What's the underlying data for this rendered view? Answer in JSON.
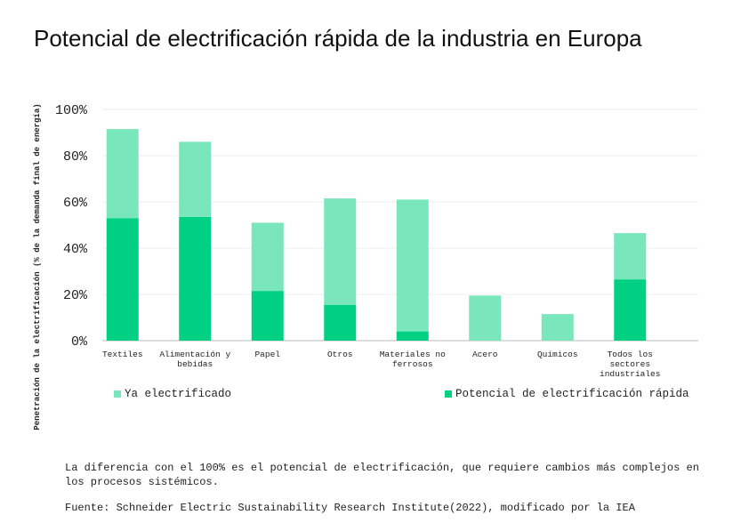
{
  "chart_data": {
    "type": "stacked_bar",
    "title": "Potencial de electrificación rápida de la industria en Europa",
    "y_label": "Penetración de la electrificación (% de la demanda final de energía)",
    "categories": [
      "Textiles",
      "Alimentación y bebidas",
      "Papel",
      "Otros",
      "Materiales no ferrosos",
      "Acero",
      "Químicos",
      "Todos los sectores industriales"
    ],
    "series": [
      {
        "name": "Potencial de electrificación rápida",
        "color": "#00d084",
        "values": [
          53,
          53.5,
          21.5,
          15.5,
          4,
          0,
          0,
          26.5
        ]
      },
      {
        "name": "Ya electrificado",
        "color": "#7ae6bb",
        "values": [
          38.5,
          32.5,
          29.5,
          46,
          57,
          19.5,
          11.5,
          20
        ]
      }
    ],
    "ylim": [
      0,
      100
    ],
    "yticks": [
      {
        "value": 0,
        "label": "0%"
      },
      {
        "value": 20,
        "label": "20%"
      },
      {
        "value": 40,
        "label": "40%"
      },
      {
        "value": 60,
        "label": "60%"
      },
      {
        "value": 80,
        "label": "80%"
      },
      {
        "value": 100,
        "label": "100%"
      }
    ],
    "grid": true,
    "note": "La diferencia con el 100% es el potencial de electrificación, que requiere cambios más complejos en los procesos sistémicos.",
    "source": "Fuente: Schneider Electric Sustainability Research Institute(2022), modificado por la IEA"
  }
}
